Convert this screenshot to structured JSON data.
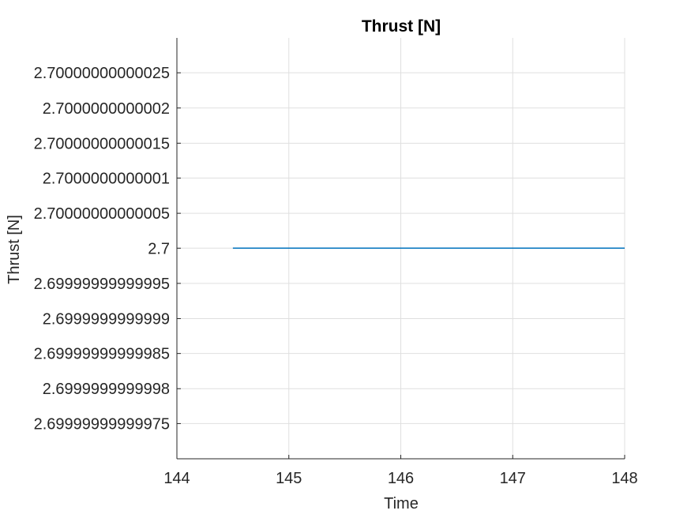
{
  "chart_data": {
    "type": "line",
    "title": "Thrust [N]",
    "xlabel": "Time",
    "ylabel": "Thrust [N]",
    "xlim": [
      144,
      148
    ],
    "ylim": [
      2.6999999999997,
      2.7000000000003
    ],
    "x_ticks": [
      144,
      145,
      146,
      147,
      148
    ],
    "x_tick_labels": [
      "144",
      "145",
      "146",
      "147",
      "148"
    ],
    "y_ticks": [
      2.69999999999975,
      2.6999999999998,
      2.69999999999985,
      2.6999999999999,
      2.69999999999995,
      2.7,
      2.70000000000005,
      2.7000000000001,
      2.70000000000015,
      2.7000000000002,
      2.70000000000025
    ],
    "y_tick_labels": [
      "2.69999999999975",
      "2.6999999999998",
      "2.69999999999985",
      "2.6999999999999",
      "2.69999999999995",
      "2.7",
      "2.70000000000005",
      "2.7000000000001",
      "2.70000000000015",
      "2.7000000000002",
      "2.70000000000025"
    ],
    "grid": true,
    "series": [
      {
        "color": "#0072BD",
        "x": [
          144.5,
          144.6,
          144.7,
          144.8,
          144.9,
          145.0,
          145.1,
          145.2,
          145.3,
          145.4,
          145.5,
          145.6,
          145.7,
          145.8,
          145.9,
          146.0,
          146.1,
          146.2,
          146.3,
          146.4,
          146.5,
          146.6,
          146.7,
          146.8,
          146.9,
          147.0,
          147.1,
          147.2,
          147.3,
          147.4,
          147.5,
          147.6,
          147.7,
          147.8,
          147.9,
          148.0
        ],
        "y": [
          2.7,
          2.7,
          2.7,
          2.7,
          2.7,
          2.7,
          2.7,
          2.7,
          2.7,
          2.7,
          2.7,
          2.7,
          2.7,
          2.7,
          2.7,
          2.7,
          2.7,
          2.7,
          2.7,
          2.7,
          2.7,
          2.7,
          2.7,
          2.7,
          2.7,
          2.7,
          2.7,
          2.7,
          2.7,
          2.7,
          2.7,
          2.7,
          2.7,
          2.7,
          2.7,
          2.7
        ]
      }
    ]
  }
}
